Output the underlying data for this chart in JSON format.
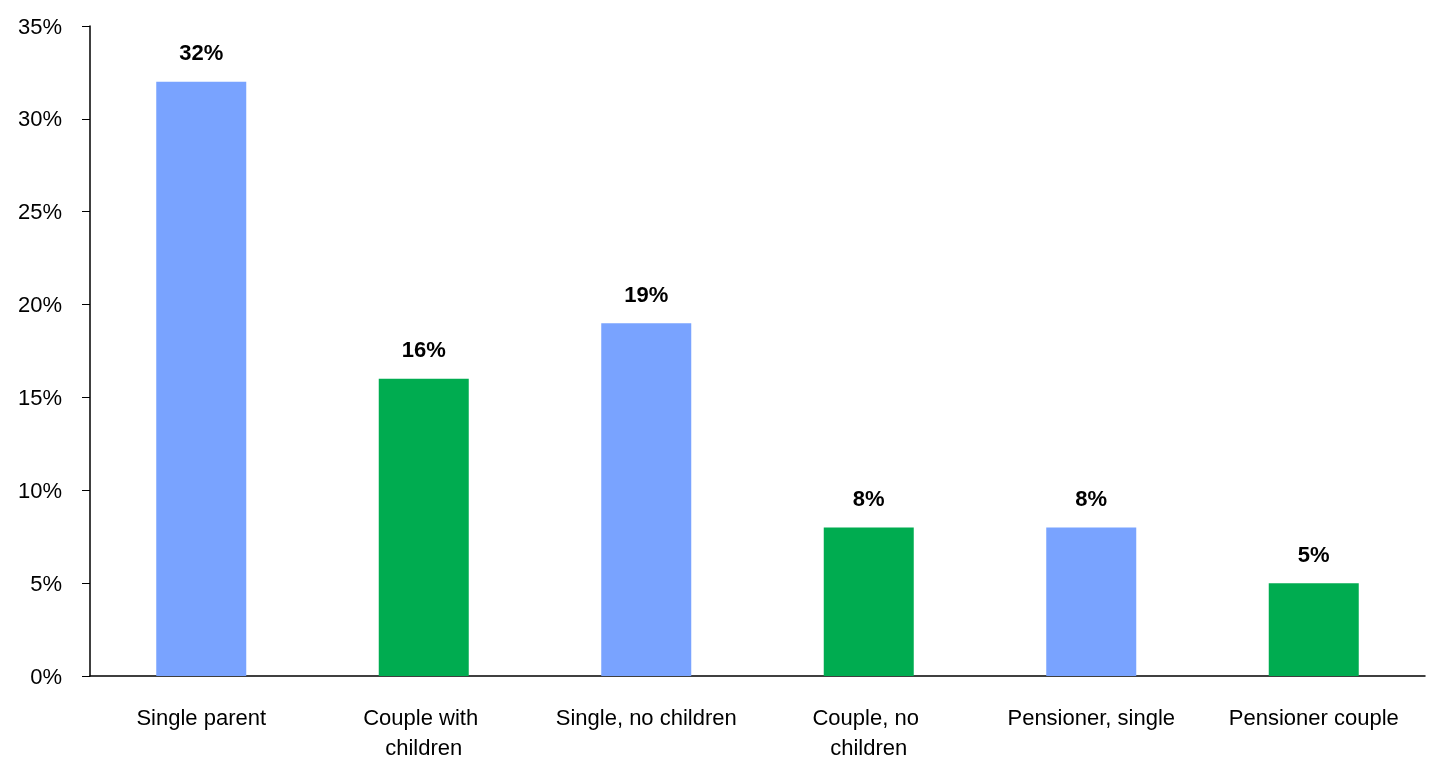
{
  "chart_data": {
    "type": "bar",
    "categories": [
      "Single parent",
      "Couple with children",
      "Single, no children",
      "Couple, no children",
      "Pensioner, single",
      "Pensioner couple"
    ],
    "values": [
      32,
      16,
      19,
      8,
      8,
      5
    ],
    "colors": [
      "#79a3ff",
      "#00ac50",
      "#79a3ff",
      "#00ac50",
      "#79a3ff",
      "#00ac50"
    ],
    "value_labels": [
      "32%",
      "16%",
      "19%",
      "8%",
      "8%",
      "5%"
    ],
    "ylim": [
      0,
      35
    ],
    "yticks": [
      {
        "value": 0,
        "label": "0%"
      },
      {
        "value": 5,
        "label": "5%"
      },
      {
        "value": 10,
        "label": "10%"
      },
      {
        "value": 15,
        "label": "15%"
      },
      {
        "value": 20,
        "label": "20%"
      },
      {
        "value": 25,
        "label": "25%"
      },
      {
        "value": 30,
        "label": "30%"
      },
      {
        "value": 35,
        "label": "35%"
      }
    ],
    "grid": false
  }
}
